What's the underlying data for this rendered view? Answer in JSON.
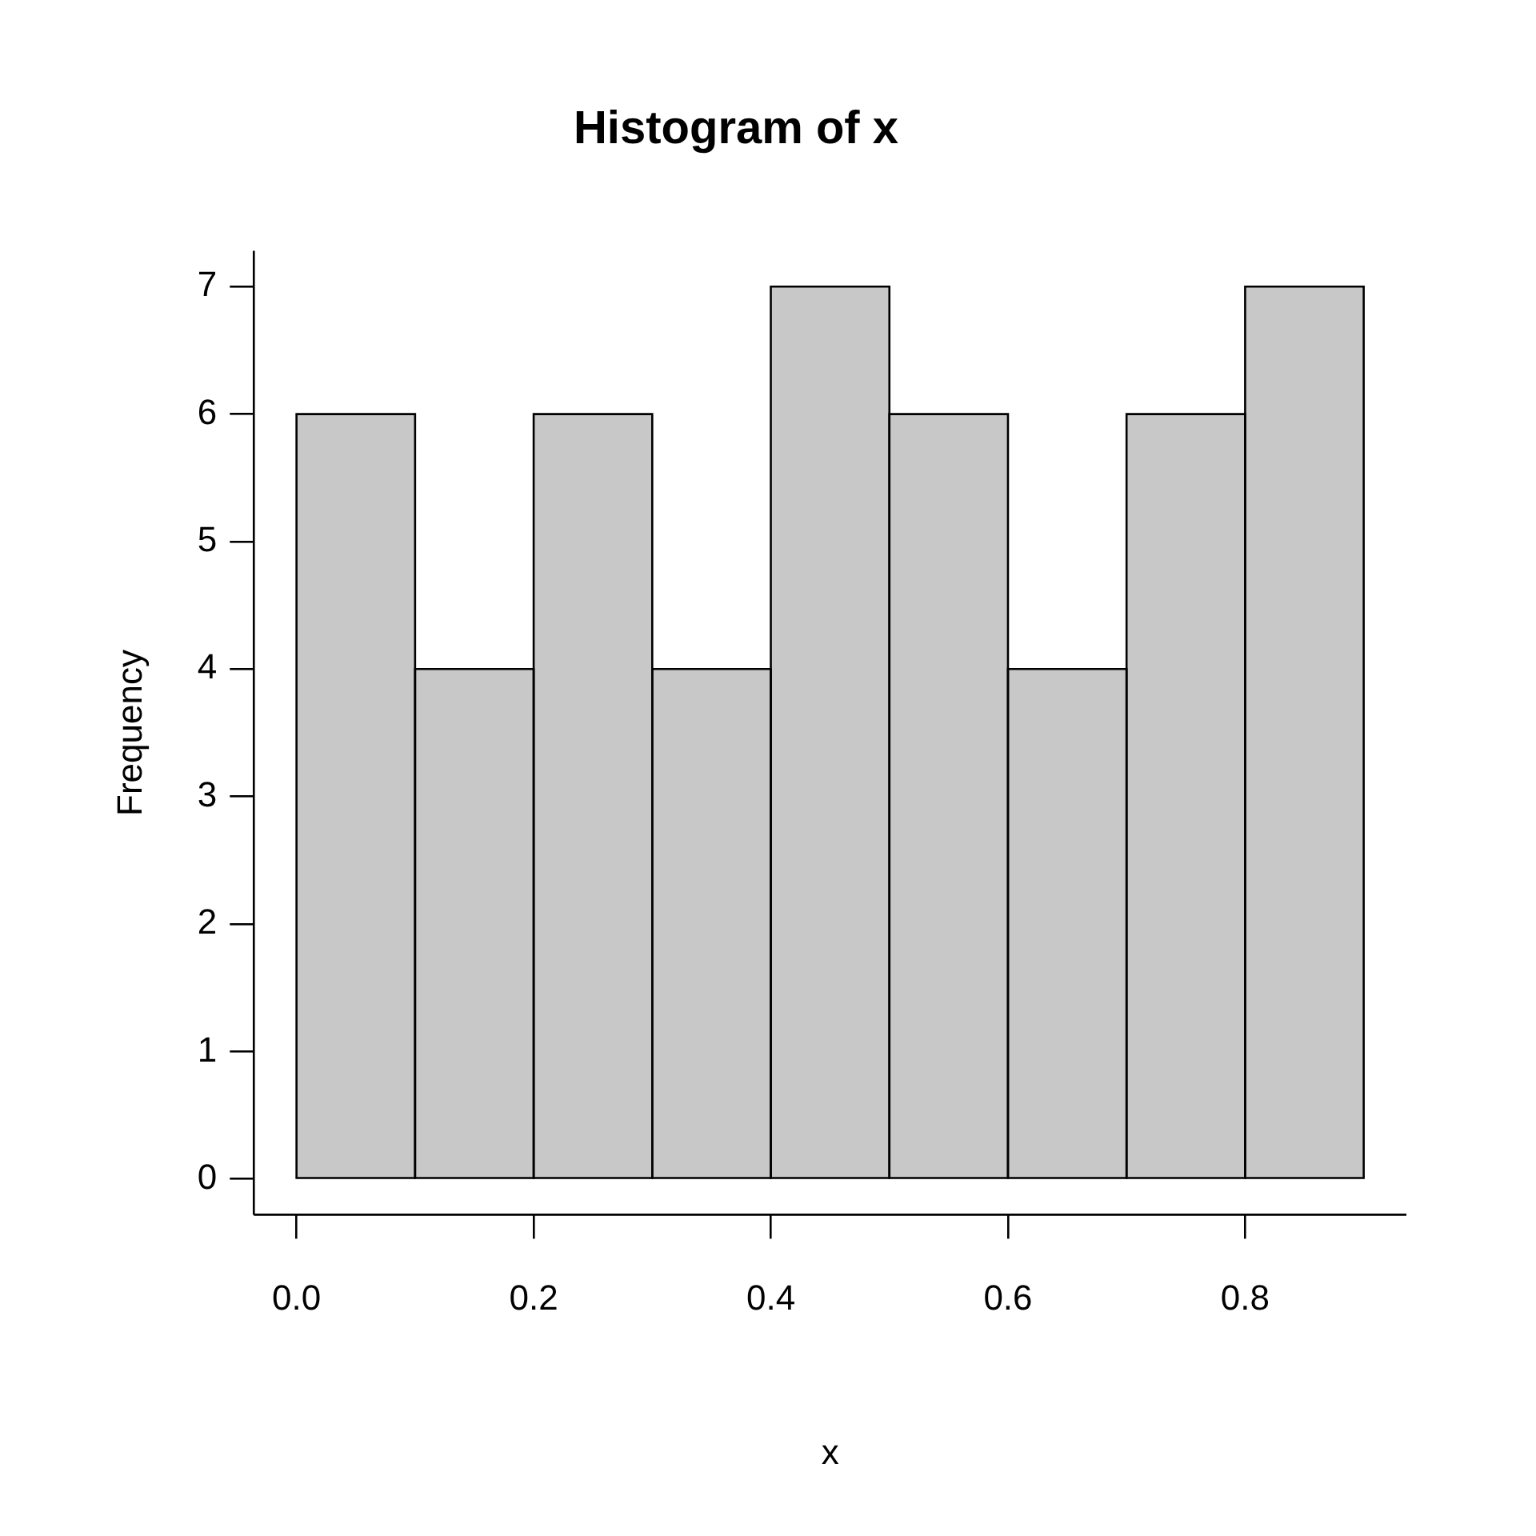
{
  "chart_data": {
    "type": "histogram",
    "title": "Histogram of x",
    "xlabel": "x",
    "ylabel": "Frequency",
    "bins": [
      0,
      0.1,
      0.2,
      0.3,
      0.4,
      0.5,
      0.6,
      0.7,
      0.8,
      0.9
    ],
    "values": [
      6,
      4,
      6,
      4,
      7,
      6,
      4,
      6,
      7
    ],
    "color": "#c8c8c8",
    "xlim": [
      -0.036,
      0.936
    ],
    "ylim": [
      -0.28,
      7.28
    ],
    "xticks": [
      {
        "value": 0,
        "label": "0.0"
      },
      {
        "value": 0.2,
        "label": "0.2"
      },
      {
        "value": 0.4,
        "label": "0.4"
      },
      {
        "value": 0.6,
        "label": "0.6"
      },
      {
        "value": 0.8,
        "label": "0.8"
      }
    ],
    "yticks": [
      0,
      1,
      2,
      3,
      4,
      5,
      6,
      7
    ],
    "grid": false,
    "legend": false
  }
}
